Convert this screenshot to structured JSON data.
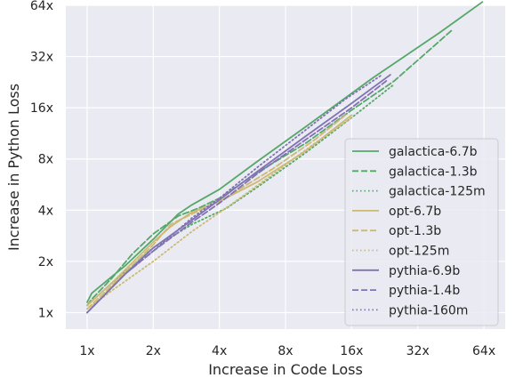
{
  "chart_data": {
    "type": "line",
    "xlabel": "Increase in Code Loss",
    "ylabel": "Increase in Python Loss",
    "x_scale": "log2",
    "y_scale": "log2",
    "xlim": [
      0.8,
      80
    ],
    "ylim": [
      0.8,
      64
    ],
    "x_ticks": [
      1,
      2,
      4,
      8,
      16,
      32,
      64
    ],
    "x_tick_labels": [
      "1x",
      "2x",
      "4x",
      "8x",
      "16x",
      "32x",
      "64x"
    ],
    "y_ticks": [
      1,
      2,
      4,
      8,
      16,
      32,
      64
    ],
    "y_tick_labels": [
      "1x",
      "2x",
      "4x",
      "8x",
      "16x",
      "32x",
      "64x"
    ],
    "grid": true,
    "legend_position": "center-right",
    "series": [
      {
        "name": "galactica-6.7b",
        "color": "#55a868",
        "dash": "solid",
        "x": [
          1.0,
          1.05,
          1.2,
          1.5,
          2.0,
          2.6,
          3.0,
          4.0,
          6.0,
          10.0,
          20.0,
          40.0,
          63.0
        ],
        "y": [
          1.15,
          1.3,
          1.5,
          1.9,
          2.7,
          3.8,
          4.3,
          5.3,
          7.8,
          12.5,
          24.0,
          44.0,
          67.0
        ]
      },
      {
        "name": "galactica-1.3b",
        "color": "#55a868",
        "dash": "dashed",
        "x": [
          1.0,
          1.05,
          1.3,
          1.6,
          2.0,
          2.6,
          3.2,
          4.0,
          6.0,
          10.0,
          16.0,
          25.0,
          46.0
        ],
        "y": [
          1.1,
          1.2,
          1.6,
          2.2,
          2.9,
          3.7,
          4.1,
          4.7,
          6.7,
          10.0,
          15.5,
          23.0,
          46.0
        ]
      },
      {
        "name": "galactica-125m",
        "color": "#55a868",
        "dash": "dotted",
        "x": [
          1.0,
          1.3,
          2.0,
          3.0,
          4.3,
          6.0,
          10.0,
          16.0,
          25.0
        ],
        "y": [
          1.1,
          1.5,
          2.4,
          3.3,
          4.1,
          5.5,
          8.8,
          14.0,
          22.0
        ]
      },
      {
        "name": "opt-6.7b",
        "color": "#ccb974",
        "dash": "solid",
        "x": [
          1.0,
          1.3,
          2.0,
          2.4,
          3.0,
          4.0,
          6.0,
          10.0,
          16.0
        ],
        "y": [
          1.1,
          1.5,
          2.6,
          3.2,
          3.9,
          4.5,
          5.9,
          9.0,
          14.5
        ]
      },
      {
        "name": "opt-1.3b",
        "color": "#ccb974",
        "dash": "dashed",
        "x": [
          1.0,
          1.3,
          2.0,
          2.4,
          3.0,
          4.0,
          7.0,
          11.0,
          15.0
        ],
        "y": [
          1.05,
          1.45,
          2.5,
          3.3,
          3.8,
          4.5,
          7.0,
          10.5,
          14.5
        ]
      },
      {
        "name": "opt-125m",
        "color": "#ccb974",
        "dash": "dotted",
        "x": [
          1.0,
          1.3,
          2.0,
          3.0,
          4.5,
          7.0,
          11.0,
          16.0
        ],
        "y": [
          1.05,
          1.35,
          2.0,
          3.0,
          4.3,
          6.5,
          10.0,
          14.0
        ]
      },
      {
        "name": "pythia-6.9b",
        "color": "#8172b3",
        "dash": "solid",
        "x": [
          1.0,
          1.5,
          2.0,
          3.0,
          4.0,
          6.0,
          10.0,
          16.0,
          24.0
        ],
        "y": [
          1.0,
          1.7,
          2.4,
          3.5,
          4.6,
          6.8,
          11.0,
          17.0,
          25.0
        ]
      },
      {
        "name": "pythia-1.4b",
        "color": "#8172b3",
        "dash": "dashed",
        "x": [
          1.0,
          1.5,
          2.0,
          3.0,
          4.0,
          6.0,
          10.0,
          16.0,
          23.0
        ],
        "y": [
          1.0,
          1.7,
          2.3,
          3.4,
          4.4,
          6.6,
          10.5,
          16.0,
          23.0
        ]
      },
      {
        "name": "pythia-160m",
        "color": "#8172b3",
        "dash": "dotted",
        "x": [
          1.0,
          1.5,
          2.0,
          3.0,
          4.0,
          6.0,
          10.0,
          15.0,
          22.0
        ],
        "y": [
          1.0,
          1.7,
          2.3,
          3.6,
          4.7,
          7.2,
          12.0,
          18.0,
          25.0
        ]
      }
    ]
  }
}
